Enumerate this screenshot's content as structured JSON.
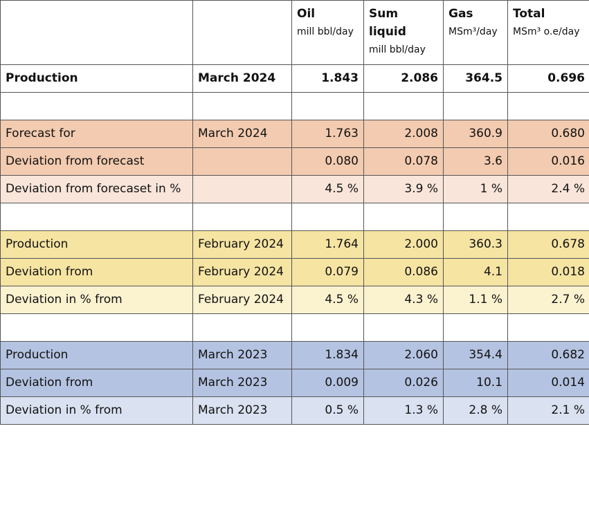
{
  "table": {
    "columns": [
      {
        "title": "Oil",
        "unit": "mill bbl/day"
      },
      {
        "title": "Sum liquid",
        "unit": "mill bbl/day"
      },
      {
        "title": "Gas",
        "unit": "MSm³/day"
      },
      {
        "title": "Total",
        "unit": "MSm³ o.e/day"
      }
    ],
    "rows": [
      {
        "label": "Production",
        "period": "March 2024",
        "values": [
          "1.843",
          "2.086",
          "364.5",
          "0.696"
        ]
      },
      {
        "label": "Forecast for",
        "period": "March 2024",
        "values": [
          "1.763",
          "2.008",
          "360.9",
          "0.680"
        ]
      },
      {
        "label": "Deviation from forecast",
        "values": [
          "0.080",
          "0.078",
          "3.6",
          "0.016"
        ]
      },
      {
        "label": "Deviation from forecaset in %",
        "values": [
          "4.5 %",
          "3.9 %",
          "1 %",
          "2.4 %"
        ]
      },
      {
        "label": "Production",
        "period": "February 2024",
        "values": [
          "1.764",
          "2.000",
          "360.3",
          "0.678"
        ]
      },
      {
        "label": "Deviation from",
        "period": "February 2024",
        "values": [
          "0.079",
          "0.086",
          "4.1",
          "0.018"
        ]
      },
      {
        "label": "Deviation in % from",
        "period": "February 2024",
        "values": [
          "4.5 %",
          "4.3 %",
          "1.1 %",
          "2.7 %"
        ]
      },
      {
        "label": "Production",
        "period": "March 2023",
        "values": [
          "1.834",
          "2.060",
          "354.4",
          "0.682"
        ]
      },
      {
        "label": "Deviation from",
        "period": "March 2023",
        "values": [
          "0.009",
          "0.026",
          "10.1",
          "0.014"
        ]
      },
      {
        "label": "Deviation in % from",
        "period": "March 2023",
        "values": [
          "0.5 %",
          "1.3 %",
          "2.8 %",
          "2.1 %"
        ]
      }
    ]
  }
}
